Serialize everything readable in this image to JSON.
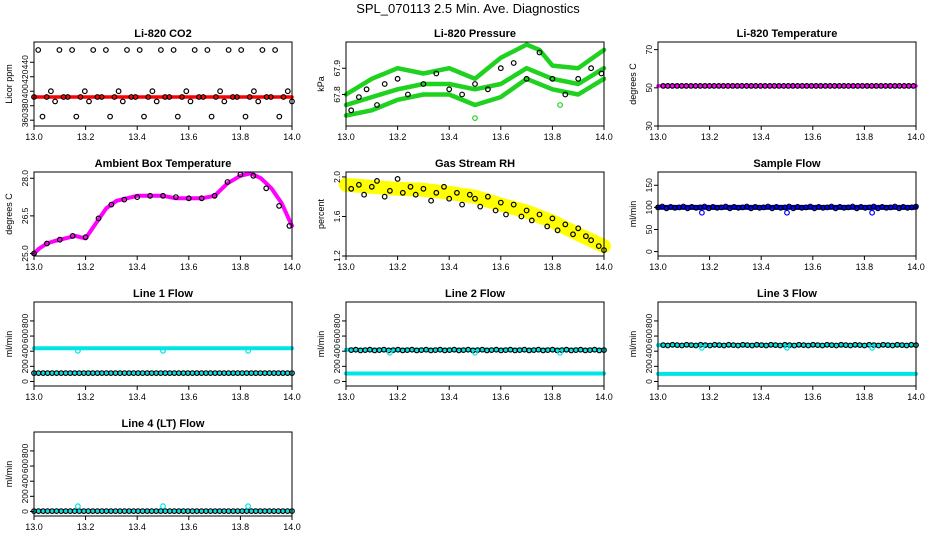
{
  "title": "SPL_070113  2.5 Min. Ave. Diagnostics",
  "colors": {
    "red": "#ff0000",
    "green": "#1fd21f",
    "magenta": "#ff00ff",
    "yellow": "#ffff00",
    "blue": "#0000ff",
    "cyan": "#00e5e5",
    "black": "#000000"
  },
  "chart_data": [
    {
      "type": "scatter",
      "title": "Li-820 CO2",
      "ylabel": "Licor ppm",
      "xlim": [
        13.0,
        14.0
      ],
      "ylim": [
        352,
        468
      ],
      "xticks": [
        "13.0",
        "13.2",
        "13.4",
        "13.6",
        "13.8",
        "14.0"
      ],
      "yticks": [
        "360",
        "380",
        "400",
        "420",
        "440"
      ],
      "series": [
        {
          "name": "CO2 continuous",
          "color": "red",
          "style": "band",
          "x": [
            13.0,
            14.0
          ],
          "y": [
            392,
            392
          ],
          "width": 3.5
        },
        {
          "name": "CO2 2.5-min averages",
          "color": "black",
          "style": "open",
          "x_start": 13.0,
          "x_end": 14.0,
          "count": 62,
          "cycle": [
            392,
            457,
            365,
            392,
            400,
            386,
            457,
            392
          ]
        }
      ]
    },
    {
      "type": "scatter",
      "title": "Li-820 Pressure",
      "ylabel": "kPa",
      "xlim": [
        13.0,
        14.0
      ],
      "ylim": [
        67.68,
        68.0
      ],
      "xticks": [
        "13.0",
        "13.2",
        "13.4",
        "13.6",
        "13.8",
        "14.0"
      ],
      "yticks": [
        "67.8",
        "67.9"
      ],
      "series": [
        {
          "name": "Pressure upper",
          "color": "green",
          "style": "band",
          "x": [
            13.0,
            13.1,
            13.2,
            13.3,
            13.4,
            13.45,
            13.5,
            13.55,
            13.6,
            13.7,
            13.75,
            13.8,
            13.9,
            14.0
          ],
          "y": [
            67.8,
            67.86,
            67.9,
            67.88,
            67.9,
            67.88,
            67.86,
            67.9,
            67.94,
            67.99,
            67.97,
            67.91,
            67.9,
            67.97
          ],
          "width": 4.5
        },
        {
          "name": "Pressure middle",
          "color": "green",
          "style": "band",
          "x": [
            13.0,
            13.1,
            13.2,
            13.3,
            13.4,
            13.5,
            13.6,
            13.7,
            13.8,
            13.9,
            14.0
          ],
          "y": [
            67.76,
            67.79,
            67.82,
            67.84,
            67.84,
            67.82,
            67.84,
            67.9,
            67.86,
            67.84,
            67.9
          ],
          "width": 4.5
        },
        {
          "name": "Pressure lower",
          "color": "green",
          "style": "band",
          "x": [
            13.0,
            13.1,
            13.2,
            13.3,
            13.4,
            13.5,
            13.6,
            13.7,
            13.8,
            13.9,
            14.0
          ],
          "y": [
            67.72,
            67.74,
            67.78,
            67.8,
            67.8,
            67.76,
            67.79,
            67.86,
            67.82,
            67.8,
            67.86
          ],
          "width": 4.5
        },
        {
          "name": "Pressure averages",
          "color": "black",
          "style": "open",
          "x": [
            13.02,
            13.05,
            13.08,
            13.12,
            13.15,
            13.2,
            13.24,
            13.3,
            13.35,
            13.4,
            13.45,
            13.5,
            13.55,
            13.6,
            13.65,
            13.7,
            13.75,
            13.8,
            13.85,
            13.9,
            13.95,
            13.99
          ],
          "y": [
            67.74,
            67.79,
            67.82,
            67.76,
            67.84,
            67.86,
            67.8,
            67.84,
            67.88,
            67.82,
            67.8,
            67.84,
            67.82,
            67.9,
            67.92,
            67.86,
            67.96,
            67.86,
            67.8,
            67.86,
            67.9,
            67.88
          ]
        },
        {
          "name": "Pressure outliers",
          "color": "green",
          "style": "open",
          "x": [
            13.5,
            13.83
          ],
          "y": [
            67.71,
            67.76
          ]
        }
      ]
    },
    {
      "type": "scatter",
      "title": "Li-820 Temperature",
      "ylabel": "degrees C",
      "xlim": [
        13.0,
        14.0
      ],
      "ylim": [
        30,
        74
      ],
      "xticks": [
        "13.0",
        "13.2",
        "13.4",
        "13.6",
        "13.8",
        "14.0"
      ],
      "yticks": [
        "30",
        "50",
        "70"
      ],
      "series": [
        {
          "name": "Temperature continuous",
          "color": "magenta",
          "style": "band",
          "x": [
            13.0,
            14.0
          ],
          "y": [
            51,
            51
          ],
          "width": 3.5
        },
        {
          "name": "Temperature averages",
          "color": "black",
          "style": "open",
          "x_start": 13.02,
          "x_end": 13.99,
          "count": 55,
          "cycle": [
            51
          ]
        }
      ]
    },
    {
      "type": "scatter",
      "title": "Ambient Box Temperature",
      "ylabel": "degrees C",
      "xlim": [
        13.0,
        14.0
      ],
      "ylim": [
        24.9,
        28.25
      ],
      "xticks": [
        "13.0",
        "13.2",
        "13.4",
        "13.6",
        "13.8",
        "14.0"
      ],
      "yticks": [
        "25.0",
        "26.5",
        "28.0"
      ],
      "series": [
        {
          "name": "Box temperature",
          "color": "magenta",
          "style": "band",
          "x": [
            13.0,
            13.02,
            13.05,
            13.08,
            13.12,
            13.16,
            13.2,
            13.24,
            13.28,
            13.32,
            13.36,
            13.4,
            13.45,
            13.5,
            13.55,
            13.6,
            13.65,
            13.7,
            13.75,
            13.8,
            13.84,
            13.88,
            13.92,
            13.96,
            14.0
          ],
          "y": [
            25.0,
            25.2,
            25.4,
            25.5,
            25.6,
            25.7,
            25.6,
            26.2,
            26.8,
            27.1,
            27.2,
            27.3,
            27.3,
            27.3,
            27.2,
            27.2,
            27.2,
            27.3,
            27.8,
            28.1,
            28.2,
            28.0,
            27.6,
            27.0,
            26.1
          ],
          "width": 4
        },
        {
          "name": "Box temperature averages",
          "color": "black",
          "style": "open",
          "x": [
            13.0,
            13.05,
            13.1,
            13.15,
            13.2,
            13.25,
            13.3,
            13.35,
            13.4,
            13.45,
            13.5,
            13.55,
            13.6,
            13.65,
            13.7,
            13.75,
            13.8,
            13.85,
            13.9,
            13.95,
            13.99
          ],
          "y": [
            25.0,
            25.4,
            25.55,
            25.7,
            25.65,
            26.4,
            26.95,
            27.15,
            27.25,
            27.3,
            27.3,
            27.25,
            27.2,
            27.2,
            27.3,
            27.85,
            28.15,
            28.1,
            27.6,
            26.9,
            26.1
          ]
        }
      ]
    },
    {
      "type": "scatter",
      "title": "Gas Stream RH",
      "ylabel": "percent",
      "xlim": [
        13.0,
        14.0
      ],
      "ylim": [
        1.2,
        2.05
      ],
      "xticks": [
        "13.0",
        "13.2",
        "13.4",
        "13.6",
        "13.8",
        "14.0"
      ],
      "yticks": [
        "1.2",
        "1.6",
        "2.0"
      ],
      "series": [
        {
          "name": "RH continuous",
          "color": "yellow",
          "style": "band",
          "x": [
            13.0,
            13.1,
            13.2,
            13.3,
            13.4,
            13.5,
            13.6,
            13.7,
            13.8,
            13.9,
            14.0
          ],
          "y": [
            1.92,
            1.9,
            1.88,
            1.87,
            1.84,
            1.8,
            1.72,
            1.65,
            1.55,
            1.42,
            1.3
          ],
          "width": 14
        },
        {
          "name": "RH averages",
          "color": "black",
          "style": "open",
          "x": [
            13.02,
            13.05,
            13.07,
            13.1,
            13.12,
            13.15,
            13.17,
            13.2,
            13.22,
            13.25,
            13.27,
            13.3,
            13.33,
            13.35,
            13.38,
            13.4,
            13.43,
            13.45,
            13.48,
            13.5,
            13.52,
            13.55,
            13.58,
            13.6,
            13.62,
            13.65,
            13.68,
            13.7,
            13.72,
            13.75,
            13.78,
            13.8,
            13.82,
            13.85,
            13.88,
            13.9,
            13.93,
            13.95,
            13.98,
            14.0
          ],
          "y": [
            1.88,
            1.92,
            1.82,
            1.9,
            1.96,
            1.8,
            1.86,
            1.98,
            1.84,
            1.9,
            1.82,
            1.88,
            1.76,
            1.84,
            1.9,
            1.78,
            1.84,
            1.72,
            1.82,
            1.78,
            1.7,
            1.8,
            1.66,
            1.74,
            1.62,
            1.72,
            1.6,
            1.66,
            1.56,
            1.62,
            1.5,
            1.58,
            1.46,
            1.52,
            1.42,
            1.48,
            1.4,
            1.36,
            1.3,
            1.26
          ]
        }
      ]
    },
    {
      "type": "scatter",
      "title": "Sample Flow",
      "ylabel": "ml/min",
      "xlim": [
        13.0,
        14.0
      ],
      "ylim": [
        -10,
        180
      ],
      "xticks": [
        "13.0",
        "13.2",
        "13.4",
        "13.6",
        "13.8",
        "14.0"
      ],
      "yticks": [
        "0",
        "50",
        "100",
        "150"
      ],
      "series": [
        {
          "name": "Sample flow continuous",
          "color": "blue",
          "style": "band",
          "x": [
            13.0,
            14.0
          ],
          "y": [
            100,
            100
          ],
          "width": 5
        },
        {
          "name": "Sample flow averages",
          "color": "black",
          "style": "open",
          "x_start": 13.0,
          "x_end": 14.0,
          "count": 62,
          "cycle": [
            100,
            102,
            98,
            101,
            99
          ]
        },
        {
          "name": "Sample flow dips",
          "color": "blue",
          "style": "open",
          "x": [
            13.17,
            13.5,
            13.83
          ],
          "y": [
            88,
            88,
            88
          ]
        }
      ]
    },
    {
      "type": "scatter",
      "title": "Line 1 Flow",
      "ylabel": "ml/min",
      "xlim": [
        13.0,
        14.0
      ],
      "ylim": [
        -60,
        1050
      ],
      "xticks": [
        "13.0",
        "13.2",
        "13.4",
        "13.6",
        "13.8",
        "14.0"
      ],
      "yticks": [
        "0",
        "200",
        "400",
        "600",
        "800"
      ],
      "series": [
        {
          "name": "Line 1 upper",
          "color": "cyan",
          "style": "band",
          "x": [
            13.0,
            14.0
          ],
          "y": [
            440,
            440
          ],
          "width": 4
        },
        {
          "name": "Line 1 lower",
          "color": "cyan",
          "style": "band",
          "x": [
            13.0,
            14.0
          ],
          "y": [
            110,
            110
          ],
          "width": 3
        },
        {
          "name": "Line 1 averages",
          "color": "black",
          "style": "open",
          "x_start": 13.0,
          "x_end": 14.0,
          "count": 58,
          "cycle": [
            110
          ]
        },
        {
          "name": "Line 1 dips",
          "color": "cyan",
          "style": "open",
          "x": [
            13.17,
            13.5,
            13.83
          ],
          "y": [
            405,
            405,
            405
          ]
        }
      ]
    },
    {
      "type": "scatter",
      "title": "Line 2 Flow",
      "ylabel": "ml/min",
      "xlim": [
        13.0,
        14.0
      ],
      "ylim": [
        -60,
        1050
      ],
      "xticks": [
        "13.0",
        "13.2",
        "13.4",
        "13.6",
        "13.8",
        "14.0"
      ],
      "yticks": [
        "0",
        "200",
        "400",
        "600",
        "800"
      ],
      "series": [
        {
          "name": "Line 2 upper",
          "color": "cyan",
          "style": "band",
          "x": [
            13.0,
            14.0
          ],
          "y": [
            420,
            420
          ],
          "width": 4
        },
        {
          "name": "Line 2 lower",
          "color": "cyan",
          "style": "band",
          "x": [
            13.0,
            14.0
          ],
          "y": [
            105,
            105
          ],
          "width": 4
        },
        {
          "name": "Line 2 averages",
          "color": "black",
          "style": "open",
          "x_start": 13.02,
          "x_end": 14.0,
          "count": 55,
          "cycle": [
            415,
            420,
            410
          ]
        },
        {
          "name": "Line 2 dips",
          "color": "cyan",
          "style": "open",
          "x": [
            13.17,
            13.5,
            13.83
          ],
          "y": [
            380,
            380,
            380
          ]
        }
      ]
    },
    {
      "type": "scatter",
      "title": "Line 3 Flow",
      "ylabel": "ml/min",
      "xlim": [
        13.0,
        14.0
      ],
      "ylim": [
        -60,
        1050
      ],
      "xticks": [
        "13.0",
        "13.2",
        "13.4",
        "13.6",
        "13.8",
        "14.0"
      ],
      "yticks": [
        "0",
        "200",
        "400",
        "600",
        "800"
      ],
      "series": [
        {
          "name": "Line 3 upper",
          "color": "cyan",
          "style": "band",
          "x": [
            13.0,
            14.0
          ],
          "y": [
            480,
            480
          ],
          "width": 4
        },
        {
          "name": "Line 3 lower",
          "color": "cyan",
          "style": "band",
          "x": [
            13.0,
            14.0
          ],
          "y": [
            100,
            100
          ],
          "width": 4
        },
        {
          "name": "Line 3 averages",
          "color": "black",
          "style": "open",
          "x_start": 13.02,
          "x_end": 14.0,
          "count": 55,
          "cycle": [
            480,
            475,
            485
          ]
        },
        {
          "name": "Line 3 dips",
          "color": "cyan",
          "style": "open",
          "x": [
            13.17,
            13.5,
            13.83
          ],
          "y": [
            445,
            445,
            445
          ]
        }
      ]
    },
    {
      "type": "scatter",
      "title": "Line 4 (LT) Flow",
      "ylabel": "ml/min",
      "xlim": [
        13.0,
        14.0
      ],
      "ylim": [
        -60,
        1050
      ],
      "xticks": [
        "13.0",
        "13.2",
        "13.4",
        "13.6",
        "13.8",
        "14.0"
      ],
      "yticks": [
        "0",
        "200",
        "400",
        "600",
        "800"
      ],
      "series": [
        {
          "name": "Line 4 continuous",
          "color": "cyan",
          "style": "band",
          "x": [
            13.0,
            14.0
          ],
          "y": [
            5,
            5
          ],
          "width": 3
        },
        {
          "name": "Line 4 averages",
          "color": "black",
          "style": "open",
          "x_start": 13.0,
          "x_end": 14.0,
          "count": 58,
          "cycle": [
            5
          ]
        },
        {
          "name": "Line 4 spikes",
          "color": "cyan",
          "style": "open",
          "x": [
            13.17,
            13.5,
            13.83
          ],
          "y": [
            70,
            70,
            70
          ]
        }
      ]
    }
  ]
}
